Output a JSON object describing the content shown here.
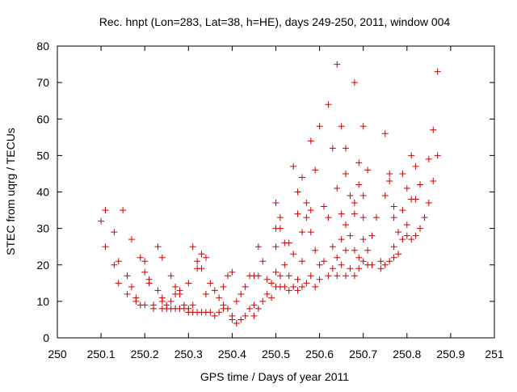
{
  "chart_data": {
    "type": "scatter",
    "title": "Rec. hnpt (Lon=283, Lat=38, h=HE), days 249-250, 2011, window 004",
    "xlabel": "GPS time / Days of year 2011",
    "ylabel": "STEC from uqrg / TECUs",
    "xlim": [
      250,
      251
    ],
    "ylim": [
      0,
      80
    ],
    "xticks": [
      "250",
      "250.1",
      "250.2",
      "250.3",
      "250.4",
      "250.5",
      "250.6",
      "250.7",
      "250.8",
      "250.9",
      "251"
    ],
    "yticks": [
      "0",
      "10",
      "20",
      "30",
      "40",
      "50",
      "60",
      "70",
      "80"
    ],
    "grid": false,
    "marker": "plus",
    "color": "#cc0000",
    "points": [
      [
        250.1,
        32
      ],
      [
        250.11,
        35
      ],
      [
        250.11,
        25
      ],
      [
        250.13,
        29
      ],
      [
        250.13,
        20
      ],
      [
        250.14,
        21
      ],
      [
        250.14,
        15
      ],
      [
        250.15,
        35
      ],
      [
        250.16,
        17
      ],
      [
        250.16,
        12
      ],
      [
        250.17,
        27
      ],
      [
        250.17,
        14
      ],
      [
        250.18,
        11
      ],
      [
        250.18,
        10
      ],
      [
        250.19,
        22
      ],
      [
        250.19,
        9
      ],
      [
        250.2,
        21
      ],
      [
        250.2,
        18
      ],
      [
        250.2,
        9
      ],
      [
        250.21,
        16
      ],
      [
        250.21,
        15
      ],
      [
        250.22,
        9
      ],
      [
        250.22,
        8
      ],
      [
        250.23,
        25
      ],
      [
        250.23,
        13
      ],
      [
        250.24,
        22
      ],
      [
        250.24,
        11
      ],
      [
        250.24,
        10
      ],
      [
        250.24,
        8
      ],
      [
        250.25,
        9
      ],
      [
        250.25,
        8
      ],
      [
        250.26,
        17
      ],
      [
        250.26,
        10
      ],
      [
        250.26,
        8
      ],
      [
        250.27,
        14
      ],
      [
        250.27,
        12
      ],
      [
        250.27,
        8
      ],
      [
        250.28,
        13
      ],
      [
        250.28,
        12
      ],
      [
        250.28,
        8
      ],
      [
        250.29,
        9
      ],
      [
        250.29,
        8
      ],
      [
        250.3,
        15
      ],
      [
        250.3,
        8
      ],
      [
        250.3,
        7
      ],
      [
        250.31,
        25
      ],
      [
        250.31,
        9
      ],
      [
        250.31,
        7
      ],
      [
        250.32,
        21
      ],
      [
        250.32,
        19
      ],
      [
        250.32,
        7
      ],
      [
        250.33,
        23
      ],
      [
        250.33,
        19
      ],
      [
        250.33,
        7
      ],
      [
        250.34,
        22
      ],
      [
        250.34,
        12
      ],
      [
        250.34,
        7
      ],
      [
        250.35,
        15
      ],
      [
        250.35,
        7
      ],
      [
        250.36,
        13
      ],
      [
        250.36,
        6
      ],
      [
        250.37,
        11
      ],
      [
        250.37,
        7
      ],
      [
        250.38,
        14
      ],
      [
        250.38,
        9
      ],
      [
        250.38,
        8
      ],
      [
        250.39,
        17
      ],
      [
        250.39,
        8
      ],
      [
        250.4,
        18
      ],
      [
        250.4,
        6
      ],
      [
        250.4,
        5
      ],
      [
        250.41,
        10
      ],
      [
        250.41,
        4
      ],
      [
        250.42,
        12
      ],
      [
        250.42,
        5
      ],
      [
        250.43,
        14
      ],
      [
        250.43,
        6
      ],
      [
        250.44,
        17
      ],
      [
        250.44,
        8
      ],
      [
        250.45,
        17
      ],
      [
        250.45,
        9
      ],
      [
        250.45,
        6
      ],
      [
        250.46,
        25
      ],
      [
        250.46,
        17
      ],
      [
        250.46,
        8
      ],
      [
        250.47,
        21
      ],
      [
        250.47,
        10
      ],
      [
        250.48,
        16
      ],
      [
        250.48,
        12
      ],
      [
        250.49,
        15
      ],
      [
        250.49,
        11
      ],
      [
        250.5,
        37
      ],
      [
        250.5,
        30
      ],
      [
        250.5,
        25
      ],
      [
        250.5,
        18
      ],
      [
        250.5,
        14
      ],
      [
        250.51,
        33
      ],
      [
        250.51,
        30
      ],
      [
        250.51,
        17
      ],
      [
        250.51,
        14
      ],
      [
        250.52,
        26
      ],
      [
        250.52,
        20
      ],
      [
        250.52,
        14
      ],
      [
        250.53,
        26
      ],
      [
        250.53,
        17
      ],
      [
        250.53,
        13
      ],
      [
        250.54,
        47
      ],
      [
        250.54,
        23
      ],
      [
        250.54,
        14
      ],
      [
        250.55,
        40
      ],
      [
        250.55,
        34
      ],
      [
        250.55,
        16
      ],
      [
        250.55,
        13
      ],
      [
        250.56,
        44
      ],
      [
        250.56,
        29
      ],
      [
        250.56,
        21
      ],
      [
        250.56,
        14
      ],
      [
        250.57,
        37
      ],
      [
        250.57,
        33
      ],
      [
        250.57,
        15
      ],
      [
        250.58,
        54
      ],
      [
        250.58,
        35
      ],
      [
        250.58,
        29
      ],
      [
        250.58,
        17
      ],
      [
        250.59,
        46
      ],
      [
        250.59,
        24
      ],
      [
        250.59,
        14
      ],
      [
        250.6,
        58
      ],
      [
        250.6,
        20
      ],
      [
        250.6,
        16
      ],
      [
        250.61,
        36
      ],
      [
        250.61,
        21
      ],
      [
        250.62,
        64
      ],
      [
        250.62,
        33
      ],
      [
        250.62,
        17
      ],
      [
        250.63,
        52
      ],
      [
        250.63,
        25
      ],
      [
        250.63,
        19
      ],
      [
        250.64,
        75
      ],
      [
        250.64,
        41
      ],
      [
        250.64,
        22
      ],
      [
        250.64,
        17
      ],
      [
        250.65,
        58
      ],
      [
        250.65,
        34
      ],
      [
        250.65,
        27
      ],
      [
        250.65,
        20
      ],
      [
        250.66,
        52
      ],
      [
        250.66,
        45
      ],
      [
        250.66,
        31
      ],
      [
        250.66,
        24
      ],
      [
        250.66,
        17
      ],
      [
        250.67,
        39
      ],
      [
        250.67,
        28
      ],
      [
        250.67,
        19
      ],
      [
        250.68,
        70
      ],
      [
        250.68,
        37
      ],
      [
        250.68,
        34
      ],
      [
        250.68,
        24
      ],
      [
        250.68,
        17
      ],
      [
        250.69,
        48
      ],
      [
        250.69,
        42
      ],
      [
        250.69,
        22
      ],
      [
        250.69,
        19
      ],
      [
        250.7,
        58
      ],
      [
        250.7,
        39
      ],
      [
        250.7,
        33
      ],
      [
        250.7,
        27
      ],
      [
        250.7,
        21
      ],
      [
        250.71,
        46
      ],
      [
        250.71,
        24
      ],
      [
        250.71,
        20
      ],
      [
        250.72,
        28
      ],
      [
        250.72,
        20
      ],
      [
        250.73,
        33
      ],
      [
        250.74,
        21
      ],
      [
        250.74,
        19
      ],
      [
        250.75,
        56
      ],
      [
        250.75,
        39
      ],
      [
        250.75,
        20
      ],
      [
        250.76,
        45
      ],
      [
        250.76,
        43
      ],
      [
        250.76,
        21
      ],
      [
        250.77,
        36
      ],
      [
        250.77,
        33
      ],
      [
        250.77,
        25
      ],
      [
        250.77,
        22
      ],
      [
        250.78,
        29
      ],
      [
        250.78,
        23
      ],
      [
        250.79,
        45
      ],
      [
        250.79,
        35
      ],
      [
        250.79,
        27
      ],
      [
        250.8,
        41
      ],
      [
        250.8,
        31
      ],
      [
        250.8,
        28
      ],
      [
        250.81,
        50
      ],
      [
        250.81,
        38
      ],
      [
        250.81,
        27
      ],
      [
        250.82,
        47
      ],
      [
        250.82,
        38
      ],
      [
        250.82,
        28
      ],
      [
        250.83,
        42
      ],
      [
        250.83,
        30
      ],
      [
        250.84,
        33
      ],
      [
        250.85,
        49
      ],
      [
        250.85,
        37
      ],
      [
        250.86,
        57
      ],
      [
        250.86,
        43
      ],
      [
        250.87,
        73
      ],
      [
        250.87,
        50
      ]
    ]
  }
}
